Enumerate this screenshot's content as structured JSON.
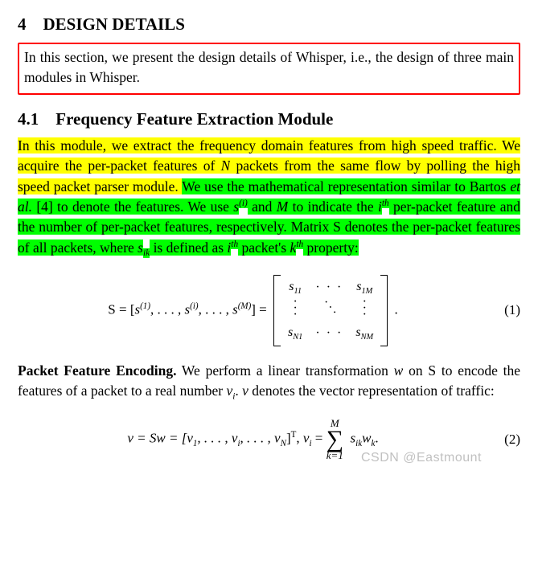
{
  "section": {
    "number": "4",
    "title": "DESIGN DETAILS",
    "intro": "In this section, we present the design details of Whisper, i.e., the design of three main modules in Whisper."
  },
  "subsection": {
    "number": "4.1",
    "title": "Frequency Feature Extraction Module"
  },
  "para1": {
    "yellow": "In this module, we extract the frequency domain features from high speed traffic. We acquire the per-packet features of ",
    "yellow_N": "N",
    "yellow_tail": " packets from the same flow by polling the high speed packet parser module. ",
    "green_a": "We use the mathematical representation similar to Bartos ",
    "green_etal": "et al.",
    "green_b": " [4] to denote the features. We use ",
    "sym_s": "s",
    "sym_s_exp": "(i)",
    "green_c": " and ",
    "sym_M": "M",
    "green_d": " to indicate the ",
    "sym_i": "i",
    "sym_th": "th",
    "green_e": " per-packet feature and the number of per-packet features, respectively. Matrix S denotes the per-packet features of all packets, where ",
    "sym_sik_s": "s",
    "sym_sik_sub": "ik",
    "green_f": " is defined as ",
    "sym_i2": "i",
    "sym_th2": "th",
    "green_g": " packet's ",
    "sym_k": "k",
    "sym_th3": "th",
    "green_h": " property:"
  },
  "eq1": {
    "lhs_S": "S = [",
    "s1": "s",
    "e1": "(1)",
    "mid1": ", . . . , ",
    "si": "s",
    "ei": "(i)",
    "mid2": ", . . . , ",
    "sM": "s",
    "eM": "(M)",
    "rhs_close": "] = ",
    "m11_s": "s",
    "m11_sub": "11",
    "m1M_s": "s",
    "m1M_sub": "1M",
    "mN1_s": "s",
    "mN1_sub": "N1",
    "mNM_s": "s",
    "mNM_sub": "NM",
    "period": ".",
    "num": "(1)"
  },
  "para2": {
    "lead": "Packet Feature Encoding.",
    "text_a": " We perform a linear transformation ",
    "w": "w",
    "text_b": " on S to encode the features of a packet to a real number ",
    "vi_v": "v",
    "vi_sub": "i",
    "text_c": ". ",
    "v": "v",
    "text_d": " denotes the vector representation of traffic:"
  },
  "eq2": {
    "lhs": "v = Sw = [v",
    "sub1": "1",
    "mid1": ", . . . , v",
    "subi": "i",
    "mid2": ", . . . , v",
    "subN": "N",
    "rhs1": "]",
    "supT": "T",
    "comma": ",   ",
    "vi_v": "v",
    "vi_sub": "i",
    "eq": " = ",
    "sum_top": "M",
    "sum_bot": "k=1",
    "term_s": "s",
    "term_s_sub": "ik",
    "term_w": "w",
    "term_w_sub": "k",
    "period": ".",
    "num": "(2)"
  },
  "highlight_colors": {
    "yellow": "#ffff00",
    "green": "#00ff00",
    "red_border": "#ff0000"
  },
  "watermark": "CSDN @Eastmount"
}
